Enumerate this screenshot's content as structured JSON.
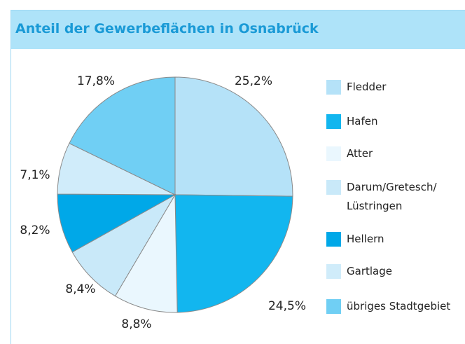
{
  "chart_data": {
    "type": "pie",
    "title": "Anteil der Gewerbeflächen in Osnabrück",
    "categories": [
      "Fledder",
      "Hafen",
      "Atter",
      "Darum/Gretesch/\nLüstringen",
      "Hellern",
      "Gartlage",
      "übriges Stadtgebiet"
    ],
    "values": [
      25.2,
      24.5,
      8.8,
      8.4,
      8.2,
      7.1,
      17.8
    ],
    "value_labels": [
      "25,2%",
      "24,5%",
      "8,8%",
      "8,4%",
      "8,2%",
      "7,1%",
      "17,8%"
    ],
    "colors": [
      "#b5e2f8",
      "#12b6ef",
      "#eaf7fe",
      "#c9e9f9",
      "#00a8e8",
      "#d0ecfa",
      "#70cff4"
    ]
  }
}
